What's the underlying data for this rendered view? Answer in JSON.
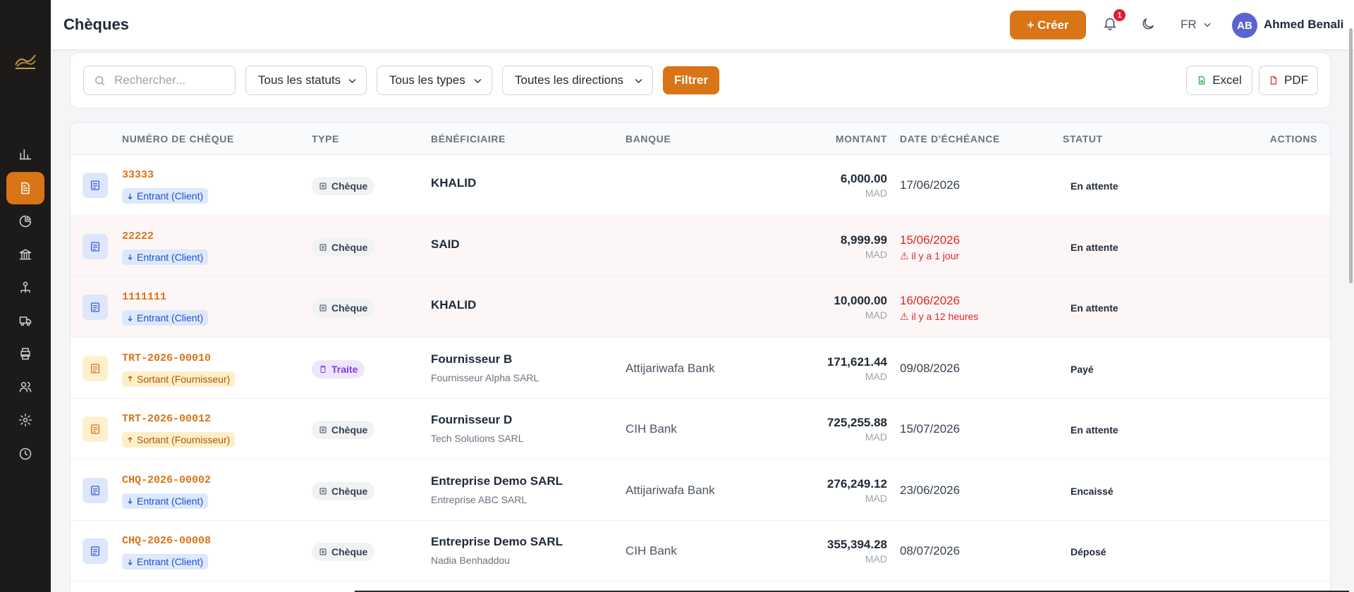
{
  "header": {
    "title": "Chèques",
    "create_label": "+ Créer",
    "notification_count": "1",
    "language": "FR",
    "user_initials": "AB",
    "user_name": "Ahmed Benali"
  },
  "sidebar": {
    "items": [
      {
        "icon": "bar-chart-icon",
        "active": false
      },
      {
        "icon": "document-icon",
        "active": true
      },
      {
        "icon": "pie-chart-icon",
        "active": false
      },
      {
        "icon": "bank-icon",
        "active": false
      },
      {
        "icon": "network-icon",
        "active": false
      },
      {
        "icon": "truck-icon",
        "active": false
      },
      {
        "icon": "printer-icon",
        "active": false
      },
      {
        "icon": "users-icon",
        "active": false
      },
      {
        "icon": "gear-icon",
        "active": false
      },
      {
        "icon": "clock-icon",
        "active": false
      }
    ]
  },
  "filters": {
    "search_placeholder": "Rechercher...",
    "status_select": "Tous les statuts",
    "type_select": "Tous les types",
    "direction_select": "Toutes les directions",
    "filter_label": "Filtrer",
    "excel_label": "Excel",
    "pdf_label": "PDF"
  },
  "table": {
    "headers": {
      "number": "NUMÉRO DE CHÈQUE",
      "type": "TYPE",
      "beneficiary": "BÉNÉFICIAIRE",
      "bank": "BANQUE",
      "amount": "MONTANT",
      "due_date": "DATE D'ÉCHÉANCE",
      "status": "STATUT",
      "actions": "ACTIONS"
    },
    "rows": [
      {
        "number": "33333",
        "direction": "Entrant (Client)",
        "direction_kind": "in",
        "type": "Chèque",
        "beneficiary": "KHALID",
        "beneficiary_sub": "",
        "bank": "",
        "amount": "6,000.00",
        "currency": "MAD",
        "due_date": "17/06/2026",
        "overdue_note": "",
        "status": "En attente"
      },
      {
        "number": "22222",
        "direction": "Entrant (Client)",
        "direction_kind": "in",
        "type": "Chèque",
        "beneficiary": "SAID",
        "beneficiary_sub": "",
        "bank": "",
        "amount": "8,999.99",
        "currency": "MAD",
        "due_date": "15/06/2026",
        "overdue_note": "il y a 1 jour",
        "status": "En attente"
      },
      {
        "number": "1111111",
        "direction": "Entrant (Client)",
        "direction_kind": "in",
        "type": "Chèque",
        "beneficiary": "KHALID",
        "beneficiary_sub": "",
        "bank": "",
        "amount": "10,000.00",
        "currency": "MAD",
        "due_date": "16/06/2026",
        "overdue_note": "il y a 12 heures",
        "status": "En attente"
      },
      {
        "number": "TRT-2026-00010",
        "direction": "Sortant (Fournisseur)",
        "direction_kind": "out",
        "type": "Traite",
        "beneficiary": "Fournisseur B",
        "beneficiary_sub": "Fournisseur Alpha SARL",
        "bank": "Attijariwafa Bank",
        "amount": "171,621.44",
        "currency": "MAD",
        "due_date": "09/08/2026",
        "overdue_note": "",
        "status": "Payé"
      },
      {
        "number": "TRT-2026-00012",
        "direction": "Sortant (Fournisseur)",
        "direction_kind": "out",
        "type": "Chèque",
        "beneficiary": "Fournisseur D",
        "beneficiary_sub": "Tech Solutions SARL",
        "bank": "CIH Bank",
        "amount": "725,255.88",
        "currency": "MAD",
        "due_date": "15/07/2026",
        "overdue_note": "",
        "status": "En attente"
      },
      {
        "number": "CHQ-2026-00002",
        "direction": "Entrant (Client)",
        "direction_kind": "in",
        "type": "Chèque",
        "beneficiary": "Entreprise Demo SARL",
        "beneficiary_sub": "Entreprise ABC SARL",
        "bank": "Attijariwafa Bank",
        "amount": "276,249.12",
        "currency": "MAD",
        "due_date": "23/06/2026",
        "overdue_note": "",
        "status": "Encaissé"
      },
      {
        "number": "CHQ-2026-00008",
        "direction": "Entrant (Client)",
        "direction_kind": "in",
        "type": "Chèque",
        "beneficiary": "Entreprise Demo SARL",
        "beneficiary_sub": "Nadia Benhaddou",
        "bank": "CIH Bank",
        "amount": "355,394.28",
        "currency": "MAD",
        "due_date": "08/07/2026",
        "overdue_note": "",
        "status": "Déposé"
      }
    ]
  },
  "colors": {
    "accent": "#d97417",
    "sidebar_bg": "#1c1b1a",
    "overdue": "#dc2626"
  }
}
